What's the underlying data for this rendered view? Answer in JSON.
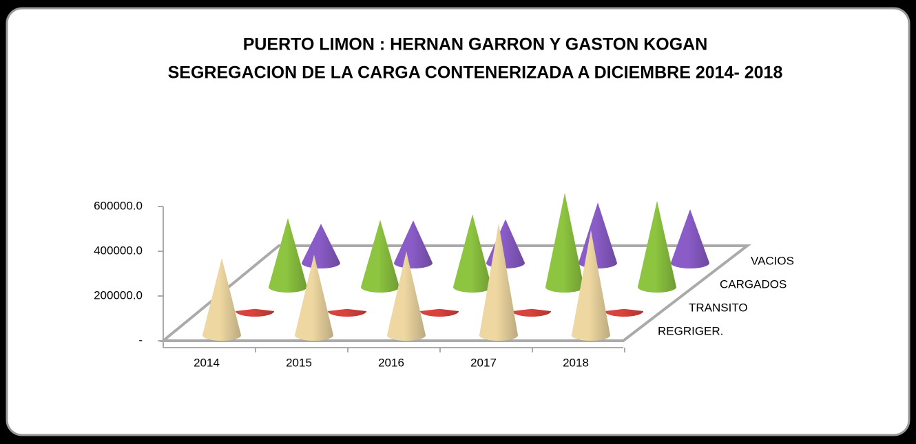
{
  "chart_data": {
    "type": "cone3d",
    "title": "PUERTO LIMON : HERNAN GARRON Y GASTON KOGAN",
    "subtitle": "SEGREGACION DE LA  CARGA CONTENERIZADA  A   DICIEMBRE  2014- 2018",
    "categories": [
      "2014",
      "2015",
      "2016",
      "2017",
      "2018"
    ],
    "series": [
      {
        "name": "REGRIGER.",
        "color": "#eed7a1",
        "values": [
          345000,
          360000,
          375000,
          500000,
          470000
        ]
      },
      {
        "name": "TRANSITO",
        "color": "#d9433d",
        "values": [
          10000,
          10000,
          10000,
          10000,
          10000
        ]
      },
      {
        "name": "CARGADOS",
        "color": "#8dc540",
        "values": [
          308000,
          300000,
          325000,
          420000,
          385000
        ]
      },
      {
        "name": "VACIOS",
        "color": "#8a5cc8",
        "values": [
          175000,
          190000,
          195000,
          270000,
          240000
        ]
      }
    ],
    "ylim": [
      0,
      600000
    ],
    "yticks": [
      {
        "value": 0,
        "label": "-"
      },
      {
        "value": 200000,
        "label": "200000.0"
      },
      {
        "value": 400000,
        "label": "400000.0"
      },
      {
        "value": 600000,
        "label": "600000.0"
      }
    ]
  }
}
